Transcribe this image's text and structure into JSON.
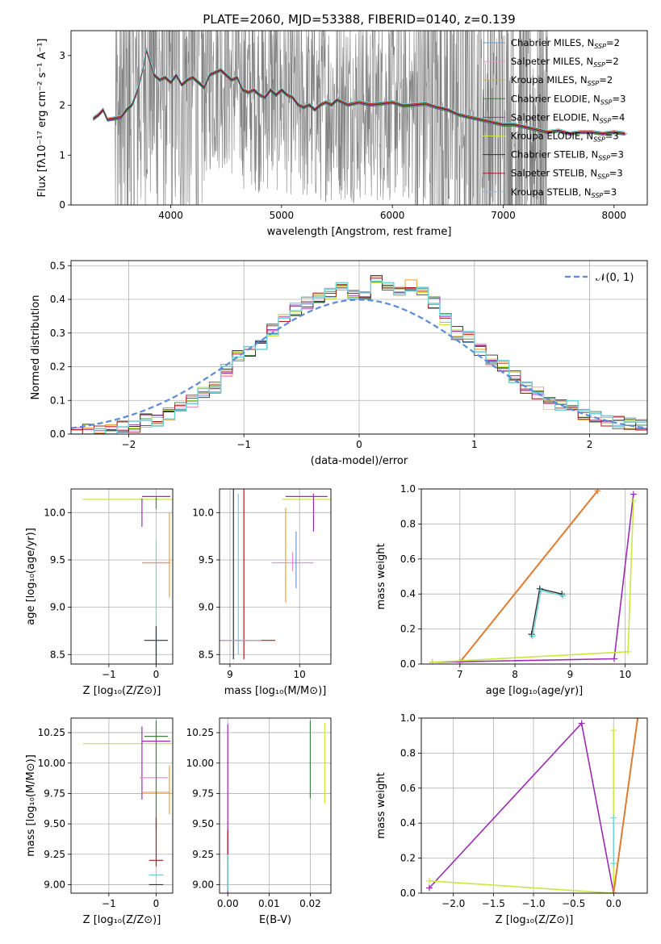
{
  "figure_title": "PLATE=2060, MJD=53388, FIBERID=0140, z=0.139",
  "colors": {
    "Chabrier MILES": "#6a9fd4",
    "Salpeter MILES": "#f08cc8",
    "Kroupa MILES": "#f0a030",
    "Chabrier ELODIE": "#3f7f3f",
    "Salpeter ELODIE": "#9b2bb5",
    "Kroupa ELODIE": "#c8e840",
    "Chabrier STELIB": "#303030",
    "Salpeter STELIB": "#b01818",
    "Kroupa STELIB": "#70d0d8",
    "data": "#808080",
    "normal": "#5b8bd8",
    "orange_model": "#e07b30"
  },
  "chart_data": [
    {
      "id": "spectrum",
      "type": "line",
      "xlabel": "wavelength [Angstrom, rest frame]",
      "ylabel": "Flux [fλ10⁻¹⁷ erg cm⁻² s⁻¹ A⁻¹]",
      "xlim": [
        3100,
        8300
      ],
      "ylim": [
        0,
        3.5
      ],
      "xticks": [
        4000,
        5000,
        6000,
        7000,
        8000
      ],
      "yticks": [
        0,
        1,
        2,
        3
      ],
      "legend_position": "top-right",
      "series": [
        {
          "name": "Chabrier MILES, N_SSP=2",
          "label_main": "Chabrier MILES, N",
          "label_sub": "SSP",
          "label_tail": "=2"
        },
        {
          "name": "Salpeter MILES, N_SSP=2",
          "label_main": "Salpeter MILES, N",
          "label_sub": "SSP",
          "label_tail": "=2"
        },
        {
          "name": "Kroupa MILES, N_SSP=2",
          "label_main": "Kroupa MILES, N",
          "label_sub": "SSP",
          "label_tail": "=2"
        },
        {
          "name": "Chabrier ELODIE, N_SSP=3",
          "label_main": "Chabrier ELODIE, N",
          "label_sub": "SSP",
          "label_tail": "=3"
        },
        {
          "name": "Salpeter ELODIE, N_SSP=4",
          "label_main": "Salpeter ELODIE, N",
          "label_sub": "SSP",
          "label_tail": "=4"
        },
        {
          "name": "Kroupa ELODIE, N_SSP=3",
          "label_main": "Kroupa ELODIE, N",
          "label_sub": "SSP",
          "label_tail": "=3"
        },
        {
          "name": "Chabrier STELIB, N_SSP=3",
          "label_main": "Chabrier STELIB, N",
          "label_sub": "SSP",
          "label_tail": "=3"
        },
        {
          "name": "Salpeter STELIB, N_SSP=3",
          "label_main": "Salpeter STELIB, N",
          "label_sub": "SSP",
          "label_tail": "=3"
        },
        {
          "name": "Kroupa STELIB, N_SSP=3",
          "label_main": "Kroupa STELIB, N",
          "label_sub": "SSP",
          "label_tail": "=3"
        }
      ],
      "model_curve": [
        [
          3300,
          1.72
        ],
        [
          3350,
          1.8
        ],
        [
          3390,
          1.9
        ],
        [
          3430,
          1.7
        ],
        [
          3480,
          1.72
        ],
        [
          3550,
          1.75
        ],
        [
          3600,
          1.9
        ],
        [
          3650,
          2.0
        ],
        [
          3700,
          2.3
        ],
        [
          3740,
          2.65
        ],
        [
          3780,
          3.1
        ],
        [
          3810,
          2.9
        ],
        [
          3850,
          2.6
        ],
        [
          3900,
          2.5
        ],
        [
          3950,
          2.55
        ],
        [
          4000,
          2.45
        ],
        [
          4050,
          2.6
        ],
        [
          4100,
          2.4
        ],
        [
          4150,
          2.5
        ],
        [
          4200,
          2.55
        ],
        [
          4250,
          2.45
        ],
        [
          4300,
          2.35
        ],
        [
          4350,
          2.6
        ],
        [
          4400,
          2.65
        ],
        [
          4450,
          2.7
        ],
        [
          4500,
          2.6
        ],
        [
          4550,
          2.5
        ],
        [
          4600,
          2.55
        ],
        [
          4650,
          2.3
        ],
        [
          4700,
          2.25
        ],
        [
          4750,
          2.3
        ],
        [
          4800,
          2.2
        ],
        [
          4850,
          2.15
        ],
        [
          4900,
          2.3
        ],
        [
          4950,
          2.2
        ],
        [
          5000,
          2.3
        ],
        [
          5050,
          2.2
        ],
        [
          5100,
          2.15
        ],
        [
          5150,
          2.0
        ],
        [
          5200,
          1.95
        ],
        [
          5250,
          2.0
        ],
        [
          5300,
          1.9
        ],
        [
          5350,
          2.0
        ],
        [
          5400,
          2.05
        ],
        [
          5450,
          2.0
        ],
        [
          5500,
          2.1
        ],
        [
          5550,
          2.05
        ],
        [
          5600,
          2.0
        ],
        [
          5700,
          2.05
        ],
        [
          5800,
          2.0
        ],
        [
          5900,
          2.02
        ],
        [
          6000,
          2.05
        ],
        [
          6100,
          1.98
        ],
        [
          6200,
          2.0
        ],
        [
          6300,
          2.02
        ],
        [
          6400,
          1.95
        ],
        [
          6500,
          1.9
        ],
        [
          6600,
          1.8
        ],
        [
          6700,
          1.75
        ],
        [
          6800,
          1.7
        ],
        [
          6900,
          1.65
        ],
        [
          7000,
          1.6
        ],
        [
          7100,
          1.6
        ],
        [
          7200,
          1.55
        ],
        [
          7300,
          1.5
        ],
        [
          7400,
          1.45
        ],
        [
          7500,
          1.48
        ],
        [
          7600,
          1.42
        ],
        [
          7700,
          1.45
        ],
        [
          7800,
          1.45
        ],
        [
          7900,
          1.42
        ],
        [
          8000,
          1.45
        ],
        [
          8100,
          1.42
        ]
      ],
      "data_noise_region": [
        3500,
        7400
      ]
    },
    {
      "id": "residuals",
      "type": "line",
      "xlabel": "(data-model)/error",
      "ylabel": "Normed distribution",
      "xlim": [
        -2.5,
        2.5
      ],
      "ylim": [
        0,
        0.515
      ],
      "xticks": [
        -2,
        -1,
        0,
        1,
        2
      ],
      "yticks": [
        0.0,
        0.1,
        0.2,
        0.3,
        0.4,
        0.5
      ],
      "legend_label": "𝒩(0, 1)",
      "legend_position": "top-right",
      "grid": true,
      "hist_bins": [
        -2.5,
        -2.4,
        -2.3,
        -2.2,
        -2.1,
        -2.0,
        -1.9,
        -1.8,
        -1.7,
        -1.6,
        -1.5,
        -1.4,
        -1.3,
        -1.2,
        -1.1,
        -1.0,
        -0.9,
        -0.8,
        -0.7,
        -0.6,
        -0.5,
        -0.4,
        -0.3,
        -0.2,
        -0.1,
        0.0,
        0.1,
        0.2,
        0.3,
        0.4,
        0.5,
        0.6,
        0.7,
        0.8,
        0.9,
        1.0,
        1.1,
        1.2,
        1.3,
        1.4,
        1.5,
        1.6,
        1.7,
        1.8,
        1.9,
        2.0,
        2.1,
        2.2,
        2.3,
        2.4,
        2.5
      ],
      "hist_values": [
        0.005,
        0.01,
        0.012,
        0.01,
        0.02,
        0.025,
        0.04,
        0.04,
        0.06,
        0.08,
        0.1,
        0.12,
        0.14,
        0.19,
        0.23,
        0.25,
        0.27,
        0.31,
        0.34,
        0.37,
        0.39,
        0.41,
        0.42,
        0.43,
        0.41,
        0.42,
        0.46,
        0.44,
        0.43,
        0.44,
        0.42,
        0.39,
        0.34,
        0.3,
        0.29,
        0.25,
        0.22,
        0.2,
        0.17,
        0.14,
        0.12,
        0.09,
        0.09,
        0.08,
        0.06,
        0.05,
        0.04,
        0.035,
        0.03,
        0.025
      ]
    },
    {
      "id": "age-Z",
      "type": "scatter",
      "xlabel": "Z [log₁₀(Z/Z⊙)]",
      "ylabel": "age  [log₁₀(age/yr)]",
      "xlim": [
        -1.8,
        0.35
      ],
      "ylim": [
        8.4,
        10.25
      ],
      "xticks": [
        -1,
        0
      ],
      "yticks": [
        8.5,
        9.0,
        9.5,
        10.0
      ]
    },
    {
      "id": "age-mass",
      "type": "scatter",
      "xlabel": "mass [log₁₀(M/M⊙)]",
      "ylabel": "",
      "xlim": [
        8.85,
        10.45
      ],
      "ylim": [
        8.4,
        10.25
      ],
      "xticks": [
        9,
        10
      ],
      "yticks": [
        8.5,
        9.0,
        9.5,
        10.0
      ]
    },
    {
      "id": "weight-age",
      "type": "line",
      "xlabel": "age  [log₁₀(age/yr)]",
      "ylabel": "mass weight",
      "xlim": [
        6.3,
        10.4
      ],
      "ylim": [
        0,
        1.0
      ],
      "xticks": [
        7,
        8,
        9,
        10
      ],
      "yticks": [
        0.0,
        0.2,
        0.4,
        0.6,
        0.8,
        1.0
      ],
      "grid": true
    },
    {
      "id": "mass-Z",
      "type": "scatter",
      "xlabel": "Z [log₁₀(Z/Z⊙)]",
      "ylabel": "mass [log₁₀(M/M⊙)]",
      "xlim": [
        -1.8,
        0.35
      ],
      "ylim": [
        8.93,
        10.37
      ],
      "xticks": [
        -1,
        0
      ],
      "yticks": [
        9.0,
        9.25,
        9.5,
        9.75,
        10.0,
        10.25
      ]
    },
    {
      "id": "mass-EBV",
      "type": "scatter",
      "xlabel": "E(B-V)",
      "ylabel": "",
      "xlim": [
        -0.002,
        0.025
      ],
      "ylim": [
        8.93,
        10.37
      ],
      "xticks": [
        0.0,
        0.01,
        0.02
      ],
      "yticks": [
        9.0,
        9.25,
        9.5,
        9.75,
        10.0,
        10.25
      ]
    },
    {
      "id": "weight-Z",
      "type": "line",
      "xlabel": "Z [log₁₀(Z/Z⊙)]",
      "ylabel": "mass weight",
      "xlim": [
        -2.4,
        0.42
      ],
      "ylim": [
        0,
        1.0
      ],
      "xticks": [
        -2.0,
        -1.5,
        -1.0,
        -0.5,
        0.0
      ],
      "yticks": [
        0.0,
        0.2,
        0.4,
        0.6,
        0.8,
        1.0
      ],
      "grid": true
    }
  ]
}
